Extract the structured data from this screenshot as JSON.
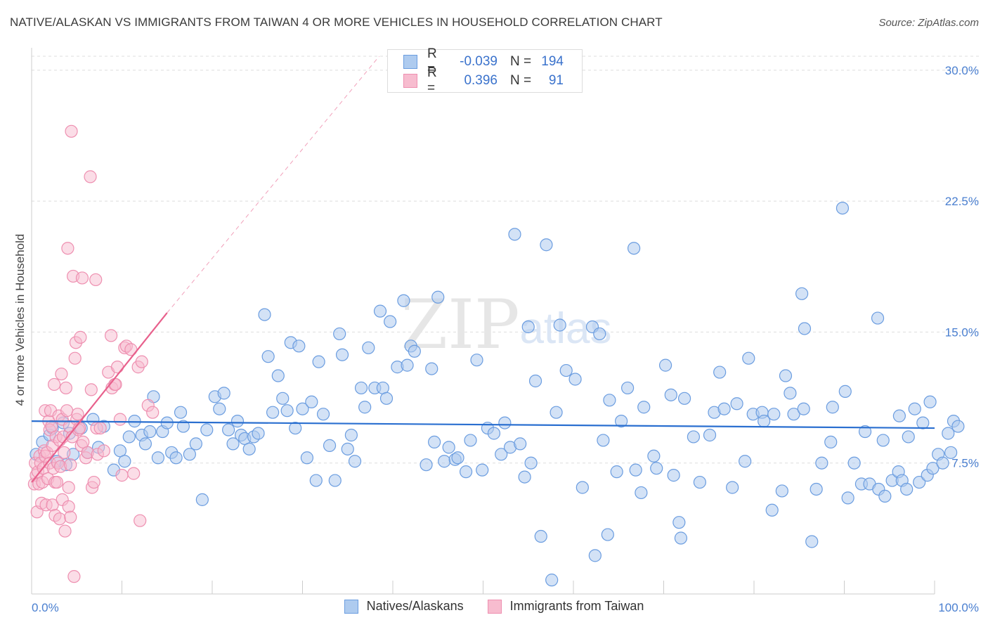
{
  "title": "NATIVE/ALASKAN VS IMMIGRANTS FROM TAIWAN 4 OR MORE VEHICLES IN HOUSEHOLD CORRELATION CHART",
  "source": "Source: ZipAtlas.com",
  "legend": {
    "rows": [
      {
        "r_label": "R =",
        "r_value": "-0.039",
        "n_label": "N =",
        "n_value": "194"
      },
      {
        "r_label": "R =",
        "r_value": "0.396",
        "n_label": "N =",
        "n_value": "91"
      }
    ]
  },
  "bottom_legend": {
    "series1": "Natives/Alaskans",
    "series2": "Immigrants from Taiwan"
  },
  "colors": {
    "blue_fill": "#aecbef",
    "blue_stroke": "#6b9de0",
    "blue_line": "#2a6fd0",
    "pink_fill": "#f7bccf",
    "pink_stroke": "#ee8fb0",
    "pink_line": "#e8608c",
    "grid": "#dddddd"
  },
  "chart_data": {
    "type": "scatter",
    "title": "NATIVE/ALASKAN VS IMMIGRANTS FROM TAIWAN 4 OR MORE VEHICLES IN HOUSEHOLD CORRELATION CHART",
    "xlabel": "",
    "ylabel": "4 or more Vehicles in Household",
    "xlim": [
      0,
      100
    ],
    "ylim": [
      0,
      30.8
    ],
    "y_ticks": [
      {
        "value": 7.5,
        "label": "7.5%"
      },
      {
        "value": 15.0,
        "label": "15.0%"
      },
      {
        "value": 22.5,
        "label": "22.5%"
      },
      {
        "value": 30.0,
        "label": "30.0%"
      }
    ],
    "x_tick_labels": {
      "min": "0.0%",
      "max": "100.0%"
    },
    "watermark": "ZIPatlas",
    "series": [
      {
        "name": "Natives/Alaskans",
        "r": -0.039,
        "n": 194,
        "trend": {
          "x": [
            0,
            100
          ],
          "y": [
            9.9,
            9.5
          ],
          "style": "solid"
        },
        "points": [
          [
            0.5,
            8.0
          ],
          [
            1.2,
            8.7
          ],
          [
            2.0,
            9.1
          ],
          [
            2.3,
            9.5
          ],
          [
            2.8,
            7.6
          ],
          [
            3.5,
            9.8
          ],
          [
            3.8,
            7.4
          ],
          [
            4.2,
            9.2
          ],
          [
            4.6,
            8.0
          ],
          [
            5.5,
            9.5
          ],
          [
            6.2,
            8.1
          ],
          [
            6.8,
            10.0
          ],
          [
            7.4,
            8.4
          ],
          [
            8.0,
            9.6
          ],
          [
            9.1,
            7.1
          ],
          [
            9.8,
            8.2
          ],
          [
            10.3,
            7.6
          ],
          [
            10.8,
            9.0
          ],
          [
            11.4,
            9.9
          ],
          [
            12.2,
            9.1
          ],
          [
            12.6,
            8.6
          ],
          [
            13.1,
            9.3
          ],
          [
            13.5,
            11.3
          ],
          [
            14.0,
            7.8
          ],
          [
            14.5,
            9.3
          ],
          [
            15.0,
            9.8
          ],
          [
            15.5,
            8.1
          ],
          [
            16.0,
            7.8
          ],
          [
            16.5,
            10.4
          ],
          [
            16.8,
            9.6
          ],
          [
            17.5,
            8.0
          ],
          [
            18.2,
            8.6
          ],
          [
            18.9,
            5.4
          ],
          [
            19.4,
            9.4
          ],
          [
            20.3,
            11.3
          ],
          [
            20.8,
            10.6
          ],
          [
            21.3,
            11.5
          ],
          [
            21.8,
            9.4
          ],
          [
            22.3,
            8.6
          ],
          [
            22.8,
            9.9
          ],
          [
            23.2,
            9.1
          ],
          [
            23.6,
            8.9
          ],
          [
            24.1,
            8.3
          ],
          [
            24.6,
            9.0
          ],
          [
            25.1,
            9.2
          ],
          [
            25.8,
            16.0
          ],
          [
            26.2,
            13.6
          ],
          [
            26.7,
            10.4
          ],
          [
            27.3,
            12.5
          ],
          [
            27.8,
            11.2
          ],
          [
            28.3,
            10.5
          ],
          [
            28.7,
            14.4
          ],
          [
            29.2,
            9.5
          ],
          [
            29.6,
            14.2
          ],
          [
            30.0,
            10.6
          ],
          [
            30.5,
            7.8
          ],
          [
            31.0,
            11.0
          ],
          [
            31.5,
            6.5
          ],
          [
            31.8,
            13.3
          ],
          [
            32.3,
            10.3
          ],
          [
            33.0,
            8.5
          ],
          [
            33.6,
            6.5
          ],
          [
            34.1,
            14.9
          ],
          [
            34.4,
            13.7
          ],
          [
            35.0,
            8.3
          ],
          [
            35.4,
            9.1
          ],
          [
            35.8,
            7.6
          ],
          [
            36.5,
            11.8
          ],
          [
            36.9,
            10.7
          ],
          [
            37.3,
            14.1
          ],
          [
            38.0,
            11.8
          ],
          [
            38.6,
            16.2
          ],
          [
            38.9,
            11.8
          ],
          [
            39.3,
            11.2
          ],
          [
            39.7,
            15.6
          ],
          [
            40.5,
            13.0
          ],
          [
            41.2,
            16.8
          ],
          [
            41.6,
            13.1
          ],
          [
            42.0,
            14.2
          ],
          [
            42.4,
            13.9
          ],
          [
            43.7,
            7.4
          ],
          [
            44.3,
            12.9
          ],
          [
            44.6,
            8.7
          ],
          [
            45.0,
            17.0
          ],
          [
            45.7,
            7.6
          ],
          [
            46.2,
            8.4
          ],
          [
            46.9,
            7.7
          ],
          [
            47.2,
            7.8
          ],
          [
            48.1,
            7.0
          ],
          [
            48.6,
            8.8
          ],
          [
            49.3,
            13.4
          ],
          [
            49.9,
            7.1
          ],
          [
            50.5,
            9.5
          ],
          [
            51.2,
            9.2
          ],
          [
            52.0,
            8.0
          ],
          [
            52.4,
            9.8
          ],
          [
            53.0,
            8.4
          ],
          [
            53.5,
            20.6
          ],
          [
            54.1,
            8.6
          ],
          [
            54.6,
            6.7
          ],
          [
            55.0,
            15.3
          ],
          [
            55.3,
            7.5
          ],
          [
            55.8,
            12.2
          ],
          [
            56.4,
            3.3
          ],
          [
            57.0,
            20.0
          ],
          [
            57.6,
            0.8
          ],
          [
            58.1,
            10.4
          ],
          [
            58.5,
            15.4
          ],
          [
            59.2,
            12.8
          ],
          [
            60.2,
            12.3
          ],
          [
            61.0,
            6.1
          ],
          [
            62.1,
            15.3
          ],
          [
            62.4,
            2.2
          ],
          [
            62.9,
            14.9
          ],
          [
            63.3,
            8.8
          ],
          [
            63.8,
            3.4
          ],
          [
            64.0,
            11.1
          ],
          [
            64.8,
            7.0
          ],
          [
            65.3,
            9.9
          ],
          [
            66.0,
            11.8
          ],
          [
            66.7,
            19.8
          ],
          [
            66.9,
            7.1
          ],
          [
            67.5,
            5.8
          ],
          [
            67.8,
            10.7
          ],
          [
            68.9,
            7.9
          ],
          [
            69.2,
            7.2
          ],
          [
            70.2,
            13.1
          ],
          [
            70.8,
            11.4
          ],
          [
            71.1,
            6.8
          ],
          [
            71.7,
            4.1
          ],
          [
            71.9,
            3.2
          ],
          [
            72.3,
            11.2
          ],
          [
            73.3,
            9.0
          ],
          [
            74.0,
            6.4
          ],
          [
            75.1,
            9.1
          ],
          [
            75.6,
            10.4
          ],
          [
            76.2,
            12.7
          ],
          [
            76.7,
            10.6
          ],
          [
            77.6,
            6.1
          ],
          [
            78.1,
            10.9
          ],
          [
            79.0,
            7.6
          ],
          [
            79.4,
            13.5
          ],
          [
            79.9,
            10.3
          ],
          [
            80.9,
            10.4
          ],
          [
            81.1,
            9.9
          ],
          [
            82.0,
            4.8
          ],
          [
            82.2,
            10.3
          ],
          [
            83.1,
            5.9
          ],
          [
            83.5,
            12.5
          ],
          [
            84.0,
            11.5
          ],
          [
            84.4,
            10.3
          ],
          [
            85.3,
            17.2
          ],
          [
            85.5,
            10.6
          ],
          [
            85.6,
            15.2
          ],
          [
            86.4,
            3.0
          ],
          [
            86.9,
            6.0
          ],
          [
            87.5,
            7.5
          ],
          [
            88.5,
            8.7
          ],
          [
            88.7,
            10.7
          ],
          [
            89.8,
            22.1
          ],
          [
            90.1,
            11.6
          ],
          [
            90.4,
            5.5
          ],
          [
            91.1,
            7.5
          ],
          [
            91.9,
            6.3
          ],
          [
            92.3,
            9.3
          ],
          [
            92.8,
            6.3
          ],
          [
            93.7,
            15.8
          ],
          [
            93.8,
            6.0
          ],
          [
            94.3,
            8.8
          ],
          [
            94.5,
            5.6
          ],
          [
            95.3,
            6.5
          ],
          [
            96.0,
            7.0
          ],
          [
            96.1,
            10.2
          ],
          [
            96.4,
            6.5
          ],
          [
            96.9,
            6.0
          ],
          [
            97.1,
            9.0
          ],
          [
            97.8,
            10.6
          ],
          [
            98.3,
            6.4
          ],
          [
            98.7,
            9.8
          ],
          [
            99.2,
            6.8
          ],
          [
            99.5,
            11.0
          ],
          [
            99.8,
            7.2
          ],
          [
            100.4,
            8.0
          ],
          [
            100.9,
            7.5
          ],
          [
            101.5,
            9.2
          ],
          [
            101.8,
            8.1
          ],
          [
            102.1,
            9.9
          ],
          [
            102.6,
            9.6
          ]
        ]
      },
      {
        "name": "Immigrants from Taiwan",
        "r": 0.396,
        "n": 91,
        "trend": {
          "x": [
            0,
            15
          ],
          "y": [
            6.4,
            16.1
          ],
          "dashed_extension_to": {
            "x": 38.5,
            "y": 30.8
          }
        },
        "points": [
          [
            0.3,
            6.3
          ],
          [
            0.4,
            7.5
          ],
          [
            0.5,
            6.8
          ],
          [
            0.6,
            4.7
          ],
          [
            0.7,
            7.0
          ],
          [
            0.8,
            6.3
          ],
          [
            0.9,
            7.9
          ],
          [
            1.0,
            7.5
          ],
          [
            1.1,
            5.2
          ],
          [
            1.2,
            6.4
          ],
          [
            1.3,
            7.2
          ],
          [
            1.4,
            8.2
          ],
          [
            1.5,
            7.9
          ],
          [
            1.5,
            10.5
          ],
          [
            1.6,
            5.1
          ],
          [
            1.7,
            8.1
          ],
          [
            1.8,
            6.6
          ],
          [
            1.9,
            9.9
          ],
          [
            2.0,
            7.5
          ],
          [
            2.0,
            9.4
          ],
          [
            2.1,
            10.5
          ],
          [
            2.2,
            9.6
          ],
          [
            2.3,
            8.5
          ],
          [
            2.3,
            5.1
          ],
          [
            2.4,
            7.2
          ],
          [
            2.5,
            12.0
          ],
          [
            2.6,
            6.4
          ],
          [
            2.6,
            4.5
          ],
          [
            2.7,
            9.0
          ],
          [
            2.8,
            6.4
          ],
          [
            2.9,
            7.5
          ],
          [
            3.0,
            10.2
          ],
          [
            3.1,
            8.8
          ],
          [
            3.1,
            4.3
          ],
          [
            3.2,
            7.3
          ],
          [
            3.3,
            12.6
          ],
          [
            3.4,
            10.0
          ],
          [
            3.4,
            5.4
          ],
          [
            3.5,
            9.0
          ],
          [
            3.6,
            8.1
          ],
          [
            3.7,
            3.6
          ],
          [
            3.8,
            11.8
          ],
          [
            3.9,
            10.5
          ],
          [
            4.0,
            19.8
          ],
          [
            4.1,
            6.1
          ],
          [
            4.1,
            5.0
          ],
          [
            4.2,
            9.6
          ],
          [
            4.3,
            4.4
          ],
          [
            4.3,
            7.4
          ],
          [
            4.4,
            26.5
          ],
          [
            4.5,
            9.0
          ],
          [
            4.6,
            18.2
          ],
          [
            4.7,
            1.0
          ],
          [
            4.8,
            13.5
          ],
          [
            4.9,
            14.4
          ],
          [
            5.0,
            10.0
          ],
          [
            5.1,
            10.3
          ],
          [
            5.2,
            9.4
          ],
          [
            5.3,
            9.5
          ],
          [
            5.4,
            14.7
          ],
          [
            5.5,
            8.5
          ],
          [
            5.6,
            18.1
          ],
          [
            5.7,
            8.7
          ],
          [
            6.0,
            7.8
          ],
          [
            6.2,
            8.1
          ],
          [
            6.5,
            23.9
          ],
          [
            6.6,
            11.7
          ],
          [
            6.7,
            6.1
          ],
          [
            6.9,
            6.4
          ],
          [
            7.1,
            18.0
          ],
          [
            7.2,
            9.5
          ],
          [
            7.3,
            8.0
          ],
          [
            7.6,
            9.5
          ],
          [
            8.0,
            8.2
          ],
          [
            8.5,
            12.7
          ],
          [
            8.8,
            14.8
          ],
          [
            8.9,
            11.8
          ],
          [
            9.2,
            12.0
          ],
          [
            9.3,
            12.0
          ],
          [
            9.5,
            13.0
          ],
          [
            9.8,
            10.0
          ],
          [
            10.0,
            6.8
          ],
          [
            10.3,
            14.1
          ],
          [
            10.5,
            14.2
          ],
          [
            11.0,
            14.0
          ],
          [
            11.3,
            6.9
          ],
          [
            11.8,
            13.0
          ],
          [
            12.0,
            4.2
          ],
          [
            12.2,
            13.3
          ],
          [
            12.9,
            10.8
          ],
          [
            13.4,
            10.4
          ]
        ]
      }
    ]
  }
}
